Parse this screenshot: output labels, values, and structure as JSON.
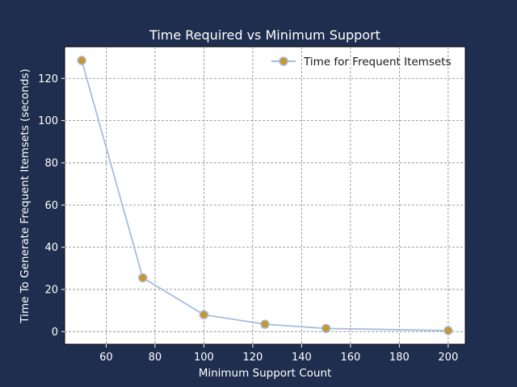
{
  "chart_data": {
    "type": "line",
    "title": "Time Required vs Minimum Support",
    "xlabel": "Minimum Support Count",
    "ylabel": "Time To Generate Frequent Itemsets (seconds)",
    "xlim": [
      43,
      207
    ],
    "ylim": [
      -6,
      135
    ],
    "xticks": [
      60,
      80,
      100,
      120,
      140,
      160,
      180,
      200
    ],
    "yticks": [
      0,
      20,
      40,
      60,
      80,
      100,
      120
    ],
    "grid": true,
    "legend_position": "top-right",
    "series": [
      {
        "name": "Time for Frequent Itemsets",
        "x": [
          50,
          75,
          100,
          125,
          150,
          200
        ],
        "y": [
          128.5,
          25.5,
          8,
          3.5,
          1.5,
          0.5
        ],
        "line_color": "#a7bbe0",
        "marker_color": "#c8962e"
      }
    ]
  },
  "colors": {
    "background": "#1f2d4e",
    "plot_area": "#ffffff",
    "grid": "#888888",
    "text": "#ffffff"
  }
}
